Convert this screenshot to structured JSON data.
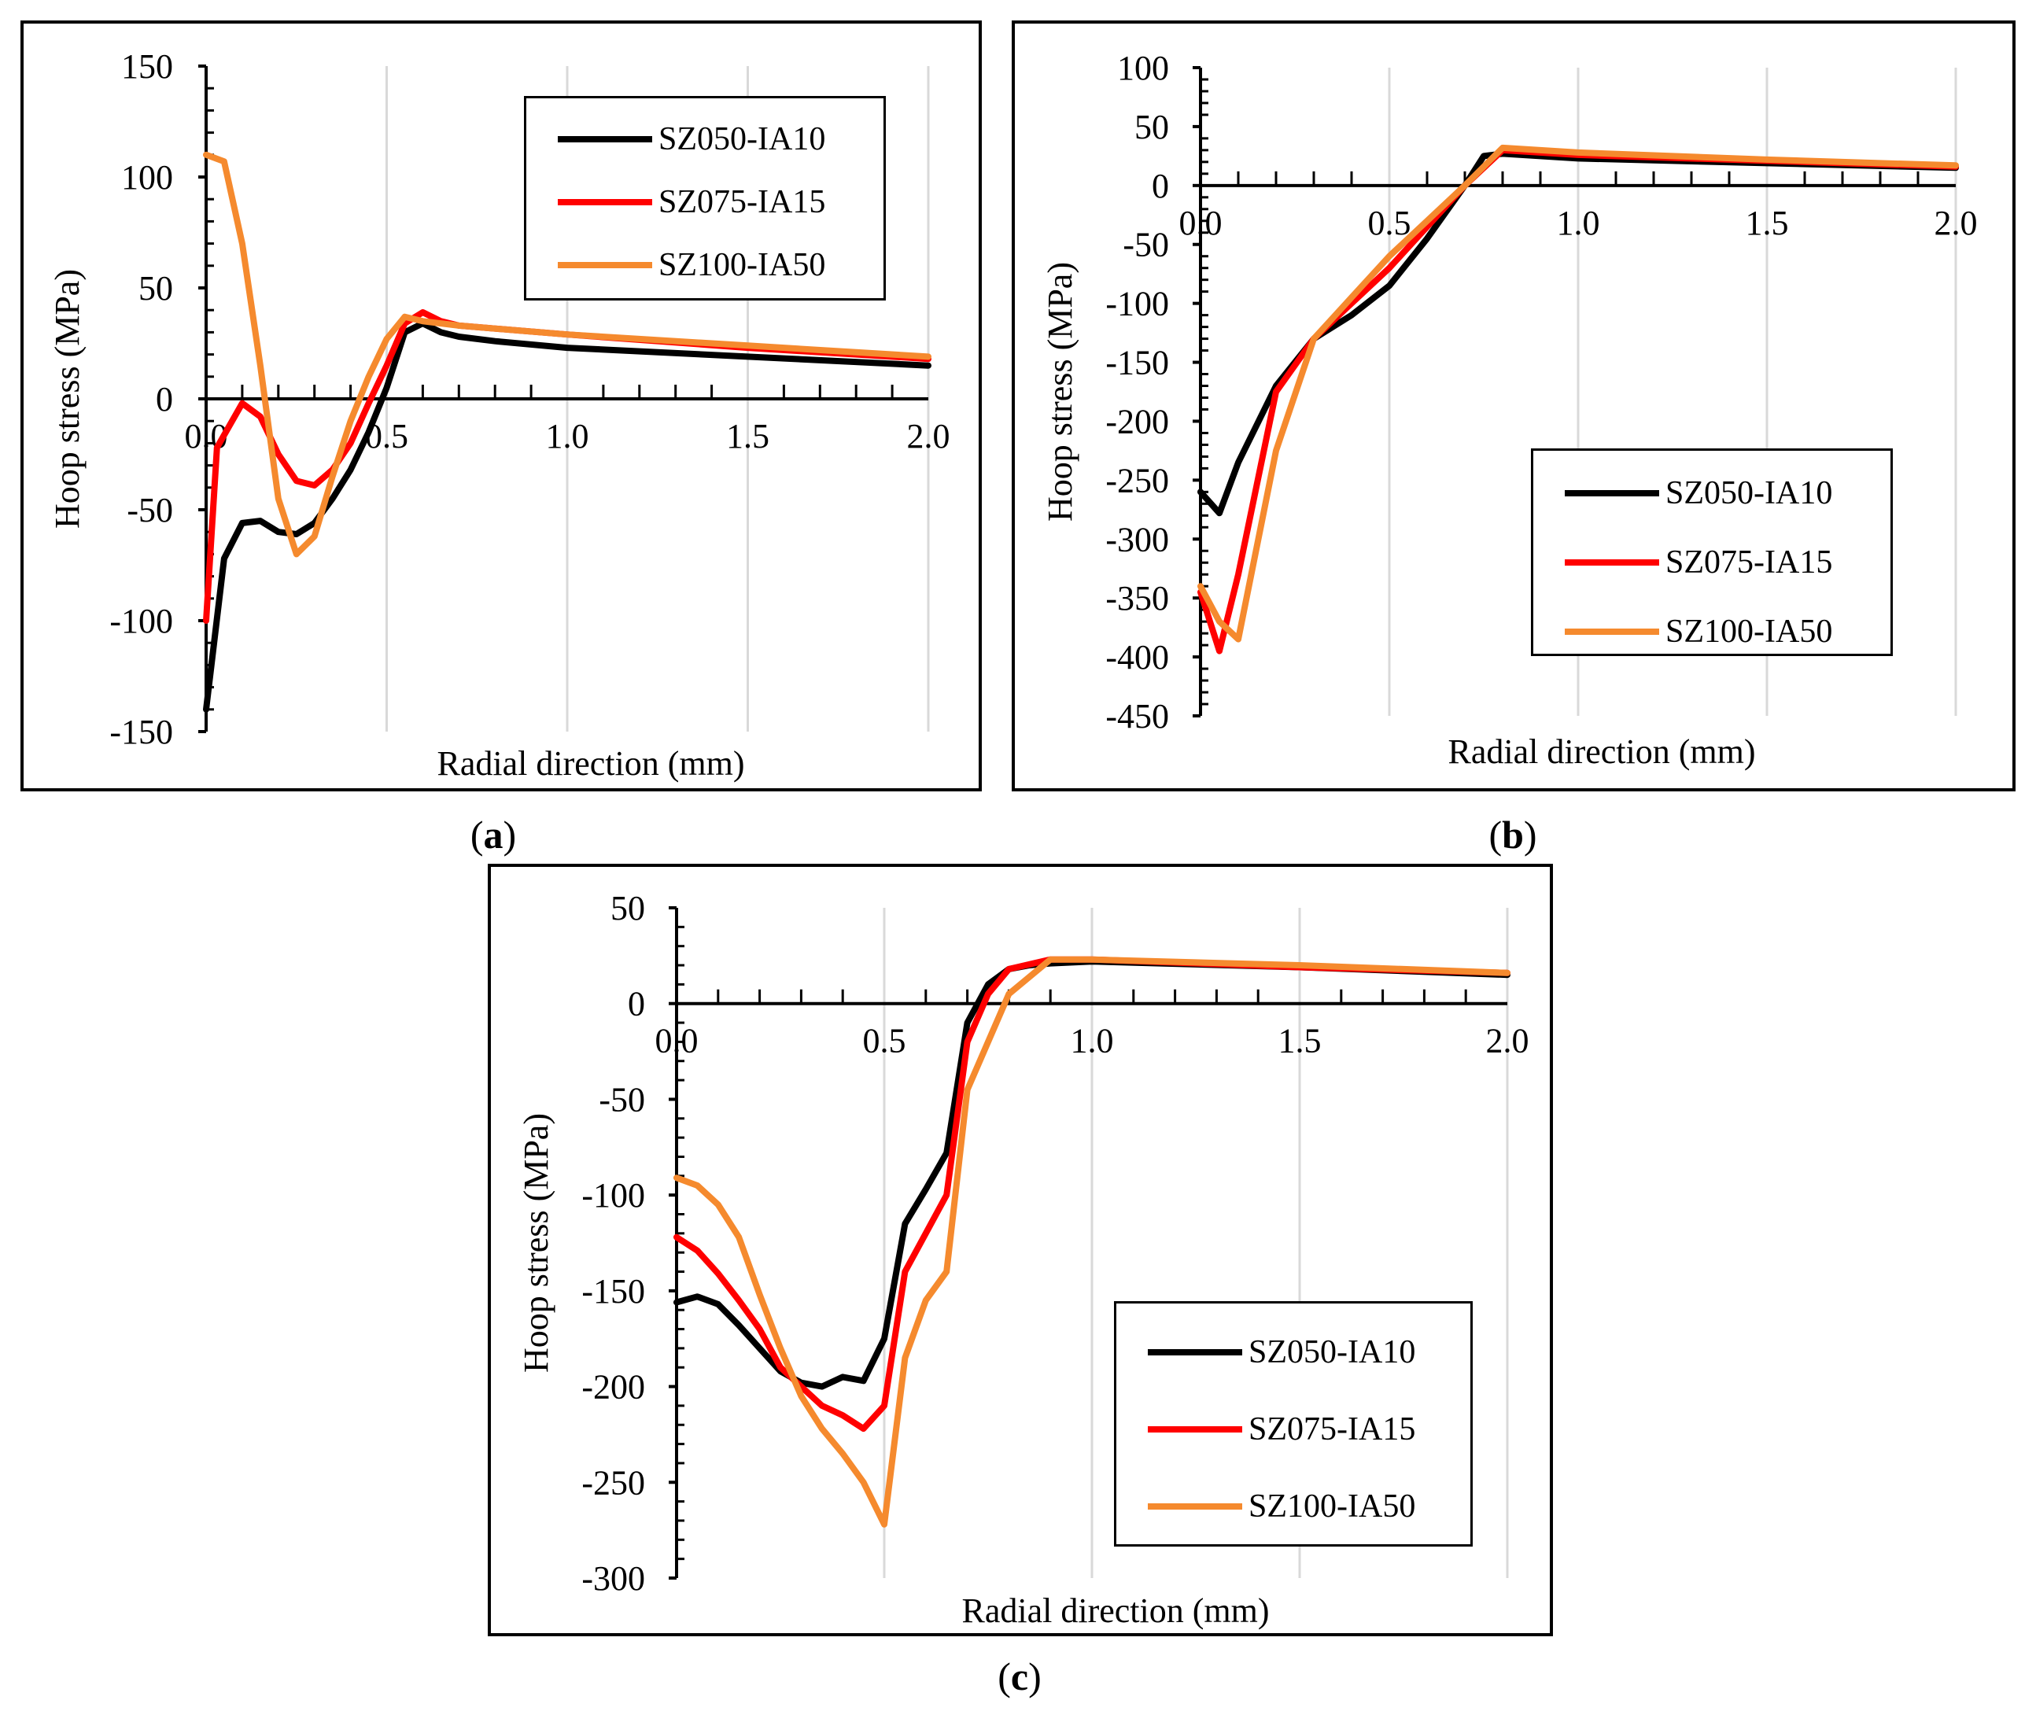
{
  "colors": {
    "SZ050-IA10": "#000000",
    "SZ075-IA15": "#ff0000",
    "SZ100-IA50": "#f58a2e",
    "grid": "#d9d9d9"
  },
  "chart_data": [
    {
      "id": "a",
      "type": "line",
      "caption_letter": "a",
      "xlabel": "Radial direction (mm)",
      "ylabel": "Hoop stress (MPa)",
      "xlim": [
        0,
        2.0
      ],
      "ylim": [
        -150,
        150
      ],
      "xticks": [
        "0.0",
        "0.5",
        "1.0",
        "1.5",
        "2.0"
      ],
      "yticks": [
        "150",
        "100",
        "50",
        "0",
        "-50",
        "-100",
        "-150"
      ],
      "legend": [
        "SZ050-IA10",
        "SZ075-IA15",
        "SZ100-IA50"
      ],
      "series": [
        {
          "name": "SZ050-IA10",
          "x": [
            0,
            0.05,
            0.1,
            0.15,
            0.2,
            0.25,
            0.3,
            0.35,
            0.4,
            0.45,
            0.5,
            0.55,
            0.6,
            0.65,
            0.7,
            0.8,
            1.0,
            1.5,
            2.0
          ],
          "y": [
            -140,
            -72,
            -56,
            -55,
            -60,
            -61,
            -56,
            -45,
            -32,
            -15,
            5,
            30,
            34,
            30,
            28,
            26,
            23,
            19,
            15
          ]
        },
        {
          "name": "SZ075-IA15",
          "x": [
            0,
            0.03,
            0.1,
            0.15,
            0.2,
            0.25,
            0.3,
            0.35,
            0.4,
            0.45,
            0.5,
            0.55,
            0.6,
            0.65,
            0.7,
            1.0,
            1.5,
            2.0
          ],
          "y": [
            -100,
            -22,
            -2,
            -8,
            -25,
            -37,
            -39,
            -32,
            -20,
            -2,
            15,
            34,
            39,
            35,
            33,
            29,
            23,
            18
          ]
        },
        {
          "name": "SZ100-IA50",
          "x": [
            0,
            0.05,
            0.1,
            0.15,
            0.2,
            0.25,
            0.3,
            0.35,
            0.4,
            0.45,
            0.5,
            0.55,
            0.6,
            0.7,
            1.0,
            1.5,
            2.0
          ],
          "y": [
            110,
            107,
            70,
            15,
            -45,
            -70,
            -62,
            -35,
            -10,
            10,
            27,
            37,
            35,
            33,
            29,
            24,
            19
          ]
        }
      ]
    },
    {
      "id": "b",
      "type": "line",
      "caption_letter": "b",
      "xlabel": "Radial direction (mm)",
      "ylabel": "Hoop stress (MPa)",
      "xlim": [
        0,
        2.0
      ],
      "ylim": [
        -450,
        100
      ],
      "xticks": [
        "0.0",
        "0.5",
        "1.0",
        "1.5",
        "2.0"
      ],
      "yticks": [
        "100",
        "50",
        "0",
        "-50",
        "-100",
        "-150",
        "-200",
        "-250",
        "-300",
        "-350",
        "-400",
        "-450"
      ],
      "legend": [
        "SZ050-IA10",
        "SZ075-IA15",
        "SZ100-IA50"
      ],
      "series": [
        {
          "name": "SZ050-IA10",
          "x": [
            0,
            0.05,
            0.1,
            0.2,
            0.3,
            0.4,
            0.5,
            0.6,
            0.7,
            0.75,
            0.8,
            1.0,
            1.5,
            2.0
          ],
          "y": [
            -260,
            -278,
            -235,
            -170,
            -130,
            -110,
            -85,
            -45,
            0,
            25,
            27,
            23,
            19,
            15
          ]
        },
        {
          "name": "SZ075-IA15",
          "x": [
            0,
            0.05,
            0.1,
            0.2,
            0.3,
            0.4,
            0.5,
            0.6,
            0.7,
            0.8,
            1.0,
            1.5,
            2.0
          ],
          "y": [
            -345,
            -395,
            -330,
            -175,
            -130,
            -100,
            -70,
            -35,
            0,
            30,
            26,
            21,
            16
          ]
        },
        {
          "name": "SZ100-IA50",
          "x": [
            0,
            0.05,
            0.1,
            0.2,
            0.3,
            0.4,
            0.5,
            0.6,
            0.7,
            0.8,
            1.0,
            1.5,
            2.0
          ],
          "y": [
            -340,
            -370,
            -385,
            -225,
            -130,
            -95,
            -60,
            -30,
            0,
            32,
            28,
            22,
            17
          ]
        }
      ]
    },
    {
      "id": "c",
      "type": "line",
      "caption_letter": "c",
      "xlabel": "Radial direction (mm)",
      "ylabel": "Hoop stress (MPa)",
      "xlim": [
        0,
        2.0
      ],
      "ylim": [
        -300,
        50
      ],
      "xticks": [
        "0.0",
        "0.5",
        "1.0",
        "1.5",
        "2.0"
      ],
      "yticks": [
        "50",
        "0",
        "-50",
        "-100",
        "-150",
        "-200",
        "-250",
        "-300"
      ],
      "legend": [
        "SZ050-IA10",
        "SZ075-IA15",
        "SZ100-IA50"
      ],
      "series": [
        {
          "name": "SZ050-IA10",
          "x": [
            0,
            0.05,
            0.1,
            0.15,
            0.2,
            0.25,
            0.3,
            0.35,
            0.4,
            0.45,
            0.5,
            0.55,
            0.6,
            0.65,
            0.7,
            0.75,
            0.8,
            0.85,
            0.9,
            1.0,
            1.5,
            2.0
          ],
          "y": [
            -156,
            -153,
            -157,
            -168,
            -180,
            -192,
            -198,
            -200,
            -195,
            -197,
            -175,
            -115,
            -97,
            -78,
            -10,
            10,
            18,
            20,
            21,
            22,
            19,
            15
          ]
        },
        {
          "name": "SZ075-IA15",
          "x": [
            0,
            0.05,
            0.1,
            0.15,
            0.2,
            0.25,
            0.3,
            0.35,
            0.4,
            0.45,
            0.5,
            0.55,
            0.6,
            0.65,
            0.7,
            0.75,
            0.8,
            0.9,
            1.0,
            1.5,
            2.0
          ],
          "y": [
            -122,
            -129,
            -141,
            -155,
            -170,
            -190,
            -200,
            -210,
            -215,
            -222,
            -210,
            -140,
            -120,
            -100,
            -20,
            5,
            18,
            23,
            23,
            19,
            16
          ]
        },
        {
          "name": "SZ100-IA50",
          "x": [
            0,
            0.05,
            0.1,
            0.15,
            0.2,
            0.25,
            0.3,
            0.35,
            0.4,
            0.45,
            0.5,
            0.55,
            0.6,
            0.65,
            0.7,
            0.75,
            0.8,
            0.9,
            1.0,
            1.5,
            2.0
          ],
          "y": [
            -91,
            -95,
            -105,
            -122,
            -152,
            -180,
            -205,
            -222,
            -235,
            -250,
            -272,
            -185,
            -155,
            -140,
            -45,
            -20,
            5,
            23,
            23,
            20,
            16
          ]
        }
      ]
    }
  ]
}
